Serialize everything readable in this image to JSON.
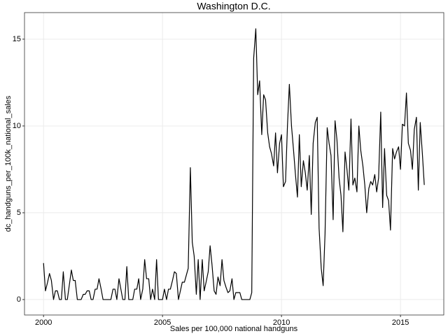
{
  "chart_data": {
    "type": "line",
    "title": "Washington D.C.",
    "x_label": "Sales per 100,000 national handguns",
    "y_label": "dc_handguns_per_100k_national_sales",
    "color": "#000000",
    "grid": true,
    "xlim": [
      1999.2,
      2016.82
    ],
    "ylim": [
      -0.89,
      16.53
    ],
    "xticks": [
      2000,
      2005,
      2010,
      2015
    ],
    "yticks": [
      0,
      5,
      10,
      15
    ],
    "x": [
      2000.0,
      2000.08,
      2000.17,
      2000.25,
      2000.33,
      2000.42,
      2000.5,
      2000.58,
      2000.67,
      2000.75,
      2000.83,
      2000.92,
      2001.0,
      2001.08,
      2001.17,
      2001.25,
      2001.33,
      2001.42,
      2001.5,
      2001.58,
      2001.67,
      2001.75,
      2001.83,
      2001.92,
      2002.0,
      2002.08,
      2002.17,
      2002.25,
      2002.33,
      2002.42,
      2002.5,
      2002.58,
      2002.67,
      2002.75,
      2002.83,
      2002.92,
      2003.0,
      2003.08,
      2003.17,
      2003.25,
      2003.33,
      2003.42,
      2003.5,
      2003.58,
      2003.67,
      2003.75,
      2003.83,
      2003.92,
      2004.0,
      2004.08,
      2004.17,
      2004.25,
      2004.33,
      2004.42,
      2004.5,
      2004.58,
      2004.67,
      2004.75,
      2004.83,
      2004.92,
      2005.0,
      2005.08,
      2005.17,
      2005.25,
      2005.33,
      2005.42,
      2005.5,
      2005.58,
      2005.67,
      2005.75,
      2005.83,
      2005.92,
      2006.0,
      2006.08,
      2006.17,
      2006.25,
      2006.33,
      2006.42,
      2006.5,
      2006.58,
      2006.67,
      2006.75,
      2006.83,
      2006.92,
      2007.0,
      2007.08,
      2007.17,
      2007.25,
      2007.33,
      2007.42,
      2007.5,
      2007.58,
      2007.67,
      2007.75,
      2007.83,
      2007.92,
      2008.0,
      2008.08,
      2008.17,
      2008.25,
      2008.33,
      2008.42,
      2008.5,
      2008.58,
      2008.67,
      2008.75,
      2008.83,
      2008.92,
      2009.0,
      2009.08,
      2009.17,
      2009.25,
      2009.33,
      2009.42,
      2009.5,
      2009.58,
      2009.67,
      2009.75,
      2009.83,
      2009.92,
      2010.0,
      2010.08,
      2010.17,
      2010.25,
      2010.33,
      2010.42,
      2010.5,
      2010.58,
      2010.67,
      2010.75,
      2010.83,
      2010.92,
      2011.0,
      2011.08,
      2011.17,
      2011.25,
      2011.33,
      2011.42,
      2011.5,
      2011.58,
      2011.67,
      2011.75,
      2011.83,
      2011.92,
      2012.0,
      2012.08,
      2012.17,
      2012.25,
      2012.33,
      2012.42,
      2012.5,
      2012.58,
      2012.67,
      2012.75,
      2012.83,
      2012.92,
      2013.0,
      2013.08,
      2013.17,
      2013.25,
      2013.33,
      2013.42,
      2013.5,
      2013.58,
      2013.67,
      2013.75,
      2013.83,
      2013.92,
      2014.0,
      2014.08,
      2014.17,
      2014.25,
      2014.33,
      2014.42,
      2014.5,
      2014.58,
      2014.67,
      2014.75,
      2014.83,
      2014.92,
      2015.0,
      2015.08,
      2015.17,
      2015.25,
      2015.33,
      2015.42,
      2015.5,
      2015.58,
      2015.67,
      2015.75,
      2015.83,
      2015.92,
      2016.0
    ],
    "values": [
      2.1,
      0.5,
      1.0,
      1.5,
      1.1,
      0,
      0.5,
      0.5,
      0,
      0,
      1.6,
      0,
      0,
      0.8,
      1.7,
      1.1,
      1.1,
      0,
      0,
      0,
      0.3,
      0.3,
      0.5,
      0.5,
      0,
      0,
      0.6,
      0.6,
      1.2,
      0.6,
      0,
      0,
      0,
      0,
      0,
      0.6,
      0.6,
      0,
      1.2,
      0.6,
      0,
      0,
      1.9,
      0,
      0,
      0,
      0.6,
      0.6,
      1.2,
      0,
      0.6,
      2.3,
      1.2,
      1.2,
      0,
      0.6,
      0,
      2.3,
      0,
      0,
      0,
      0.6,
      0,
      0.6,
      0.6,
      1.1,
      1.6,
      1.5,
      0,
      0.5,
      1.0,
      1.0,
      1.4,
      1.8,
      7.6,
      3.3,
      2.5,
      0.3,
      2.3,
      0,
      2.3,
      0.5,
      1.0,
      1.6,
      3.1,
      2.0,
      0.5,
      0.3,
      1.3,
      0.8,
      2.3,
      1.1,
      0.7,
      0.4,
      0.5,
      1.2,
      0,
      0.4,
      0.4,
      0.4,
      0,
      0,
      0,
      0,
      0,
      0.4,
      13.9,
      15.6,
      11.8,
      12.6,
      9.5,
      11.8,
      11.5,
      9.6,
      8.8,
      8.4,
      7.7,
      9.6,
      7.3,
      9.0,
      9.5,
      6.5,
      6.8,
      10.0,
      12.4,
      10.0,
      8.7,
      7.3,
      5.9,
      9.5,
      6.5,
      8.0,
      7.3,
      6.3,
      8.3,
      4.9,
      9.0,
      10.2,
      10.5,
      4.1,
      1.8,
      0.8,
      3.8,
      9.9,
      9.0,
      8.3,
      4.6,
      10.3,
      9.2,
      7.0,
      6.0,
      3.9,
      8.5,
      7.5,
      6.3,
      10.4,
      6.6,
      7.0,
      6.2,
      10.0,
      8.6,
      7.7,
      6.6,
      5.0,
      6.4,
      6.8,
      6.6,
      7.2,
      6.2,
      7.0,
      10.8,
      5.3,
      8.7,
      6.0,
      5.7,
      4.0,
      8.7,
      8.1,
      8.5,
      8.8,
      7.5,
      10.1,
      10.0,
      11.9,
      9.0,
      8.6,
      7.5,
      9.8,
      10.5,
      6.3,
      10.2,
      8.4,
      6.6
    ]
  }
}
